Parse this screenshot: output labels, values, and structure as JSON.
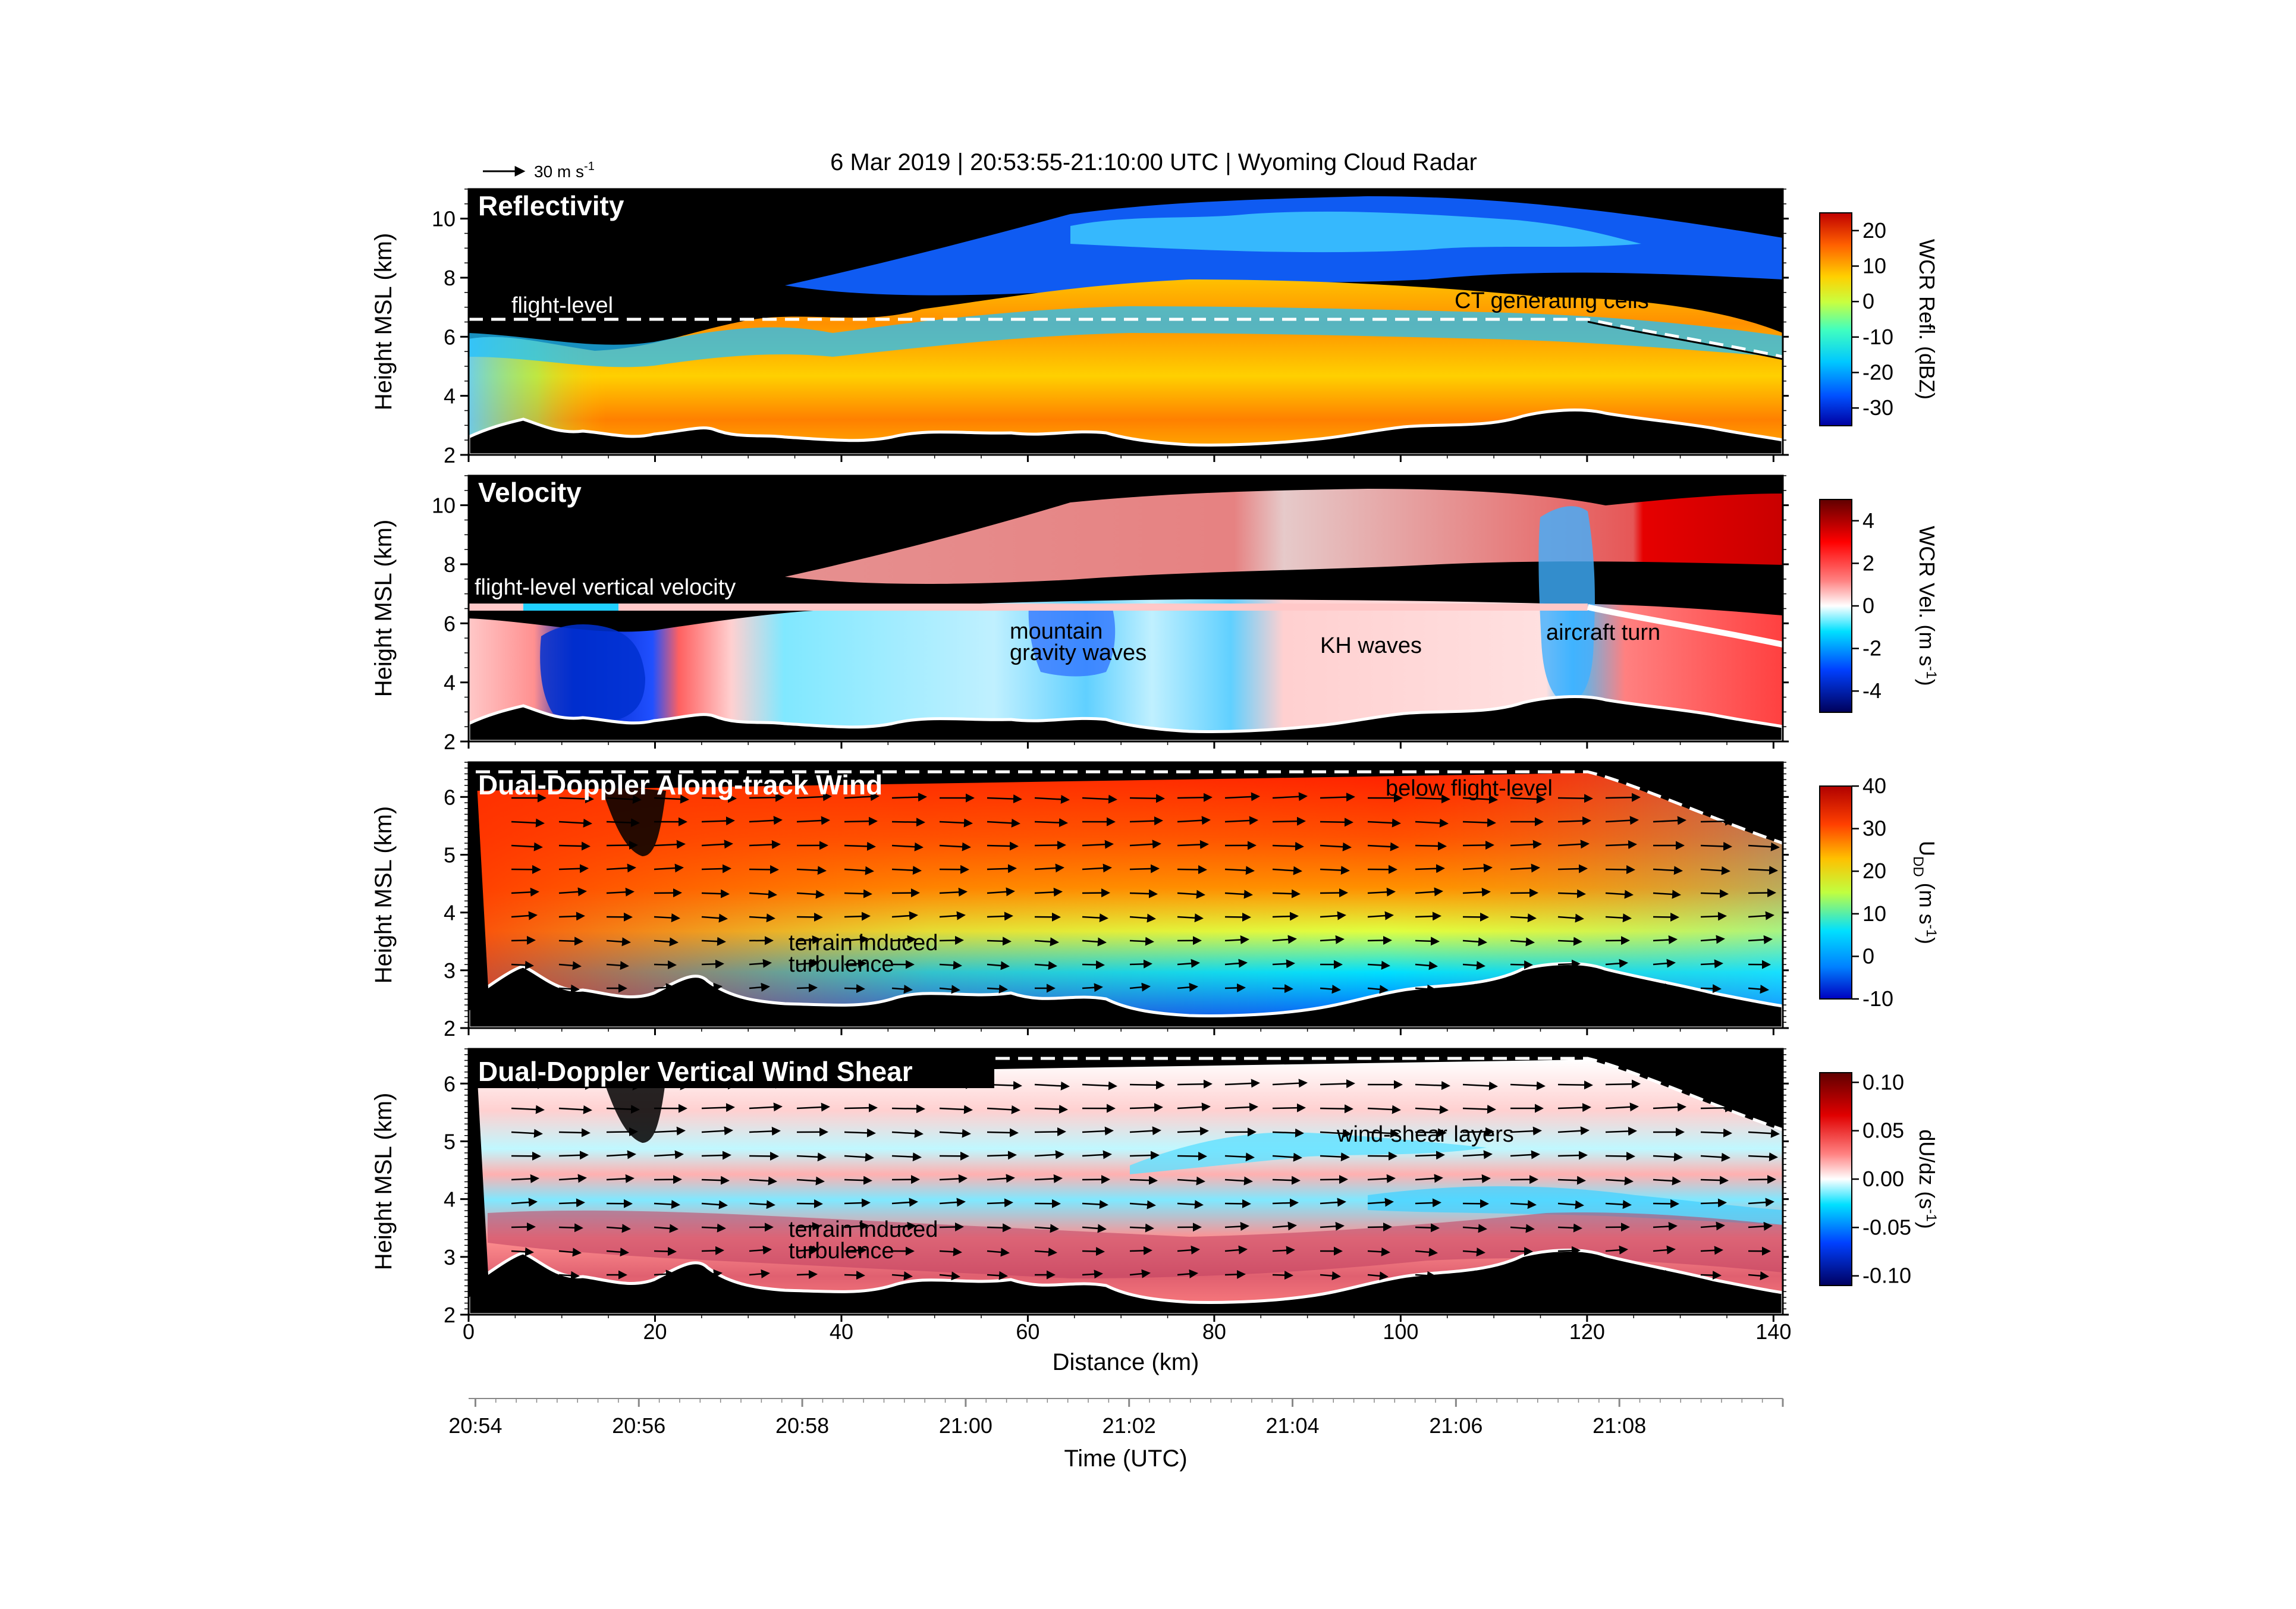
{
  "header": {
    "title": "6 Mar 2019  |  20:53:55-21:10:00 UTC  |  Wyoming Cloud Radar",
    "vector_scale_label": "30 m s",
    "vector_scale_sup": "-1"
  },
  "colors": {
    "background_panel": "#000000",
    "reflectivity_scale": [
      "#0000a0",
      "#0050ff",
      "#00c8ff",
      "#40ffc0",
      "#c8ff40",
      "#ffd000",
      "#ff6000",
      "#c00000"
    ],
    "velocity_scale": [
      "#00005a",
      "#0040ff",
      "#00e0ff",
      "#ffffff",
      "#ff8080",
      "#ff0000",
      "#600000"
    ],
    "wind_scale": [
      "#0000c0",
      "#0080ff",
      "#00e0ff",
      "#c0ff40",
      "#ffc000",
      "#ff4000",
      "#b00000"
    ],
    "shear_scale": [
      "#000060",
      "#0040ff",
      "#00e0ff",
      "#ffffff",
      "#ff8080",
      "#e00000",
      "#600000"
    ],
    "terrain_line": "#ffffff"
  },
  "chart_data": [
    {
      "type": "heatmap",
      "title": "Reflectivity",
      "ylabel": "Height MSL (km)",
      "ylim": [
        2,
        11
      ],
      "yticks": [
        2,
        4,
        6,
        8,
        10
      ],
      "xlim": [
        0,
        141
      ],
      "colorbar": {
        "label": "WCR Refl. (dBZ)",
        "range": [
          -35,
          25
        ],
        "ticks": [
          "20",
          "10",
          "0",
          "-10",
          "-20",
          "-30"
        ]
      },
      "flight_level_km": 6.5,
      "annotations": [
        {
          "text": "flight-level"
        },
        {
          "text": "CT generating cells"
        }
      ]
    },
    {
      "type": "heatmap",
      "title": "Velocity",
      "ylabel": "Height MSL (km)",
      "ylim": [
        2,
        11
      ],
      "yticks": [
        2,
        4,
        6,
        8,
        10
      ],
      "xlim": [
        0,
        141
      ],
      "colorbar": {
        "label": "WCR Vel. (m s",
        "label_sup": "-1",
        "label_end": ")",
        "range": [
          -5,
          5
        ],
        "ticks": [
          "4",
          "2",
          "0",
          "-2",
          "-4"
        ]
      },
      "annotations": [
        {
          "text": "flight-level vertical velocity"
        },
        {
          "text": "mountain"
        },
        {
          "text": "gravity waves"
        },
        {
          "text": "KH waves"
        },
        {
          "text": "aircraft turn"
        }
      ]
    },
    {
      "type": "heatmap",
      "title": "Dual-Doppler Along-track Wind",
      "ylabel": "Height MSL (km)",
      "ylim": [
        2,
        6.6
      ],
      "yticks": [
        2,
        3,
        4,
        5,
        6
      ],
      "xlim": [
        0,
        141
      ],
      "colorbar": {
        "label": "U",
        "label_sub": "DD",
        "label_end": " (m s",
        "label_sup": "-1",
        "label_close": ")",
        "range": [
          -10,
          40
        ],
        "ticks": [
          "40",
          "30",
          "20",
          "10",
          "0",
          "-10"
        ]
      },
      "annotations": [
        {
          "text": "below flight-level"
        },
        {
          "text": "terrain induced"
        },
        {
          "text": "turbulence"
        }
      ]
    },
    {
      "type": "heatmap",
      "title": "Dual-Doppler Vertical Wind Shear",
      "ylabel": "Height MSL (km)",
      "ylim": [
        2,
        6.6
      ],
      "yticks": [
        2,
        3,
        4,
        5,
        6
      ],
      "xlim": [
        0,
        141
      ],
      "colorbar": {
        "label": "dU/dz (s",
        "label_sup": "-1",
        "label_end": ")",
        "range": [
          -0.11,
          0.11
        ],
        "ticks": [
          "0.10",
          "0.05",
          "0.00",
          "-0.05",
          "-0.10"
        ]
      },
      "annotations": [
        {
          "text": "wind-shear layers"
        },
        {
          "text": "terrain induced"
        },
        {
          "text": "turbulence"
        }
      ]
    }
  ],
  "x_axis": {
    "label": "Distance (km)",
    "ticks": [
      "0",
      "20",
      "40",
      "60",
      "80",
      "100",
      "120",
      "140"
    ]
  },
  "time_axis": {
    "label": "Time (UTC)",
    "ticks": [
      "20:54",
      "20:56",
      "20:58",
      "21:00",
      "21:02",
      "21:04",
      "21:06",
      "21:08"
    ]
  }
}
